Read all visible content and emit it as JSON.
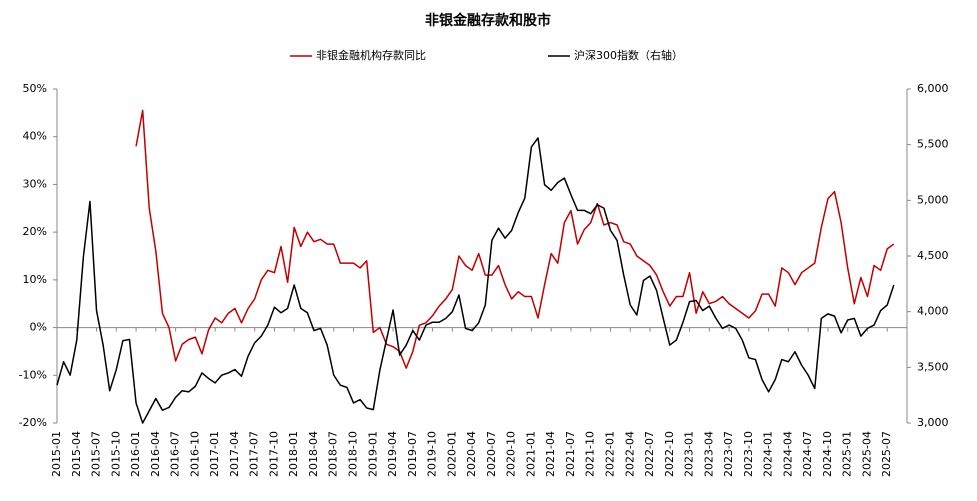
{
  "chart_data": {
    "type": "line",
    "title": "非银金融存款和股市",
    "categories": [
      "2015-01",
      null,
      null,
      "2015-04",
      null,
      null,
      "2015-07",
      null,
      null,
      "2015-10",
      null,
      null,
      "2016-01",
      null,
      null,
      "2016-04",
      null,
      null,
      "2016-07",
      null,
      null,
      "2016-10",
      null,
      null,
      "2017-01",
      null,
      null,
      "2017-04",
      null,
      null,
      "2017-07",
      null,
      null,
      "2017-10",
      null,
      null,
      "2018-01",
      null,
      null,
      "2018-04",
      null,
      null,
      "2018-07",
      null,
      null,
      "2018-10",
      null,
      null,
      "2019-01",
      null,
      null,
      "2019-04",
      null,
      null,
      "2019-07",
      null,
      null,
      "2019-10",
      null,
      null,
      "2020-01",
      null,
      null,
      "2020-04",
      null,
      null,
      "2020-07",
      null,
      null,
      "2020-10",
      null,
      null,
      "2021-01",
      null,
      null,
      "2021-04",
      null,
      null,
      "2021-07",
      null,
      null,
      "2021-10",
      null,
      null,
      "2022-01",
      null,
      null,
      "2022-04",
      null,
      null,
      "2022-07",
      null,
      null,
      "2022-10",
      null,
      null,
      "2023-01",
      null,
      null,
      "2023-04",
      null,
      null,
      "2023-07",
      null,
      null,
      "2023-10",
      null,
      null,
      "2024-01",
      null,
      null,
      "2024-04",
      null,
      null,
      "2024-07",
      null,
      null,
      "2024-10",
      null,
      null,
      "2025-01",
      null,
      null,
      "2025-04",
      null,
      null,
      "2025-07",
      null
    ],
    "series": [
      {
        "name": "非银金融机构存款同比",
        "color": "#c00000",
        "values": [
          null,
          null,
          null,
          null,
          null,
          null,
          null,
          null,
          null,
          null,
          null,
          null,
          38,
          45.5,
          25,
          16,
          3,
          0,
          -7,
          -3.5,
          -2.5,
          -2,
          -5.5,
          -0.5,
          2,
          1,
          3,
          4,
          1,
          4,
          6,
          10,
          12,
          11.5,
          17,
          9.5,
          21,
          17,
          20,
          18,
          18.5,
          17.5,
          17.5,
          13.5,
          13.5,
          13.5,
          12.5,
          14,
          -1,
          0,
          -3.5,
          -4,
          -5,
          -8.5,
          -5,
          0.5,
          1,
          2.5,
          4.5,
          6,
          8,
          15,
          13,
          12,
          15.5,
          11,
          11,
          13,
          9,
          6,
          7.5,
          6.5,
          6.5,
          2,
          9,
          15.5,
          13.5,
          22,
          24.5,
          17.5,
          20.5,
          22,
          26,
          21.5,
          22,
          21.5,
          18,
          17.5,
          15,
          14,
          13,
          11,
          7.5,
          4.5,
          6.5,
          6.5,
          11.5,
          3,
          7.5,
          5,
          5.5,
          6.5,
          5,
          4,
          3,
          2,
          3.5,
          7,
          7,
          4.5,
          12.5,
          11.5,
          9,
          11.5,
          12.5,
          13.5,
          21,
          27,
          28.5,
          22,
          12.5,
          5,
          10.5,
          6.5,
          13,
          12,
          16.5,
          17.5
        ]
      },
      {
        "name": "沪深300指数（右轴）",
        "color": "#000000",
        "axis": "y2",
        "values": [
          3340,
          3550,
          3430,
          3745,
          4490,
          4990,
          4010,
          3700,
          3290,
          3480,
          3740,
          3750,
          3180,
          3000,
          3110,
          3220,
          3115,
          3140,
          3230,
          3290,
          3280,
          3330,
          3450,
          3400,
          3360,
          3430,
          3450,
          3480,
          3420,
          3600,
          3720,
          3780,
          3880,
          4040,
          3990,
          4030,
          4240,
          4030,
          3990,
          3830,
          3850,
          3700,
          3430,
          3340,
          3320,
          3180,
          3210,
          3135,
          3120,
          3475,
          3745,
          4015,
          3610,
          3700,
          3830,
          3745,
          3880,
          3905,
          3905,
          3940,
          4000,
          4150,
          3850,
          3830,
          3900,
          4060,
          4640,
          4750,
          4660,
          4730,
          4890,
          5020,
          5480,
          5560,
          5140,
          5090,
          5160,
          5200,
          5050,
          4910,
          4910,
          4880,
          4960,
          4930,
          4730,
          4640,
          4330,
          4060,
          3970,
          4280,
          4320,
          4190,
          3940,
          3700,
          3745,
          3905,
          4090,
          4100,
          4010,
          4050,
          3940,
          3850,
          3880,
          3850,
          3745,
          3585,
          3570,
          3390,
          3280,
          3390,
          3570,
          3550,
          3640,
          3520,
          3430,
          3310,
          3940,
          3980,
          3960,
          3810,
          3925,
          3940,
          3780,
          3850,
          3880,
          4010,
          4060,
          4240
        ]
      }
    ],
    "ylim": [
      -20,
      50
    ],
    "yticks": [
      {
        "value": -20,
        "label": "-20%"
      },
      {
        "value": -10,
        "label": "-10%"
      },
      {
        "value": 0,
        "label": "0%"
      },
      {
        "value": 10,
        "label": "10%"
      },
      {
        "value": 20,
        "label": "20%"
      },
      {
        "value": 30,
        "label": "30%"
      },
      {
        "value": 40,
        "label": "40%"
      },
      {
        "value": 50,
        "label": "50%"
      }
    ],
    "y2lim": [
      3000,
      6000
    ],
    "y2ticks": [
      {
        "value": 3000,
        "label": "3,000"
      },
      {
        "value": 3500,
        "label": "3,500"
      },
      {
        "value": 4000,
        "label": "4,000"
      },
      {
        "value": 4500,
        "label": "4,500"
      },
      {
        "value": 5000,
        "label": "5,000"
      },
      {
        "value": 5500,
        "label": "5,500"
      },
      {
        "value": 6000,
        "label": "6,000"
      }
    ],
    "legend": "top"
  }
}
